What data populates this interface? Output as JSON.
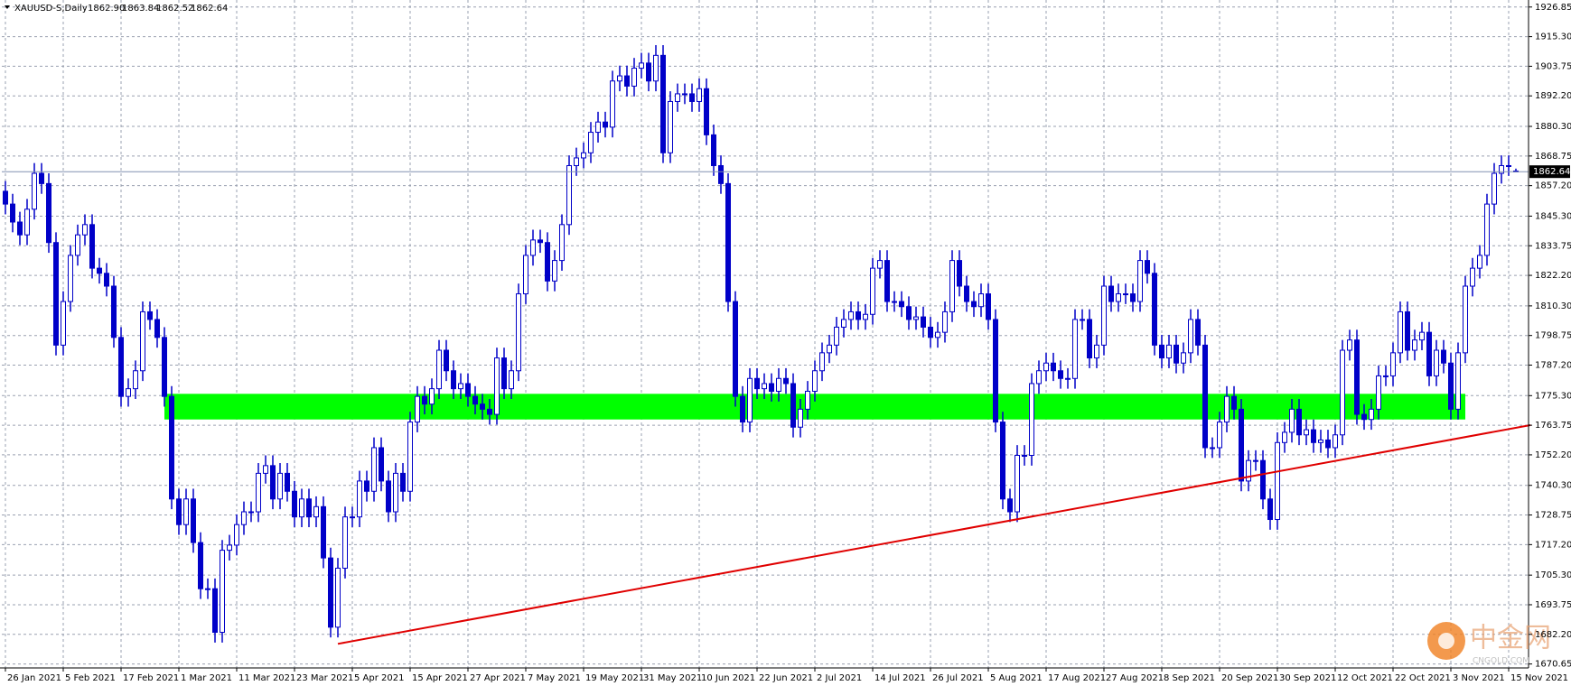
{
  "chart_data": {
    "type": "candlestick",
    "title": "XAUUSD-S,Daily",
    "header_ohlc": [
      "1862.90",
      "1863.84",
      "1862.52",
      "1862.64"
    ],
    "categories": [
      "26 Jan 2021",
      null,
      null,
      null,
      null,
      null,
      null,
      null,
      "5 Feb 2021",
      null,
      null,
      null,
      null,
      null,
      null,
      null,
      "17 Feb 2021",
      null,
      null,
      null,
      null,
      null,
      null,
      null,
      "1 Mar 2021",
      null,
      null,
      null,
      null,
      null,
      null,
      null,
      "11 Mar 2021",
      null,
      null,
      null,
      null,
      null,
      null,
      null,
      "23 Mar 2021",
      null,
      null,
      null,
      null,
      null,
      null,
      null,
      "5 Apr 2021",
      null,
      null,
      null,
      null,
      null,
      null,
      null,
      "15 Apr 2021",
      null,
      null,
      null,
      null,
      null,
      null,
      null,
      "27 Apr 2021",
      null,
      null,
      null,
      null,
      null,
      null,
      null,
      "7 May 2021",
      null,
      null,
      null,
      null,
      null,
      null,
      null,
      "19 May 2021",
      null,
      null,
      null,
      null,
      null,
      null,
      null,
      "31 May 2021",
      null,
      null,
      null,
      null,
      null,
      null,
      null,
      "10 Jun 2021",
      null,
      null,
      null,
      null,
      null,
      null,
      null,
      "22 Jun 2021",
      null,
      null,
      null,
      null,
      null,
      null,
      null,
      "2 Jul 2021",
      null,
      null,
      null,
      null,
      null,
      null,
      null,
      "14 Jul 2021",
      null,
      null,
      null,
      null,
      null,
      null,
      null,
      "26 Jul 2021",
      null,
      null,
      null,
      null,
      null,
      null,
      null,
      "5 Aug 2021",
      null,
      null,
      null,
      null,
      null,
      null,
      null,
      "17 Aug 2021",
      null,
      null,
      null,
      null,
      null,
      null,
      null,
      "27 Aug 2021",
      null,
      null,
      null,
      null,
      null,
      null,
      null,
      "8 Sep 2021",
      null,
      null,
      null,
      null,
      null,
      null,
      null,
      "20 Sep 2021",
      null,
      null,
      null,
      null,
      null,
      null,
      null,
      "30 Sep 2021",
      null,
      null,
      null,
      null,
      null,
      null,
      null,
      "12 Oct 2021",
      null,
      null,
      null,
      null,
      null,
      null,
      null,
      "22 Oct 2021",
      null,
      null,
      null,
      null,
      null,
      null,
      null,
      "3 Nov 2021",
      null,
      null,
      null,
      null,
      null,
      null,
      null,
      "15 Nov 2021",
      null
    ],
    "open": [
      1855,
      1850,
      1843,
      1838,
      1848,
      1862,
      1858,
      1835,
      1795,
      1812,
      1830,
      1838,
      1842,
      1825,
      1823,
      1818,
      1798,
      1775,
      1778,
      1785,
      1808,
      1805,
      1798,
      1775,
      1735,
      1725,
      1735,
      1718,
      1700,
      1700,
      1683,
      1715,
      1717,
      1725,
      1730,
      1730,
      1745,
      1748,
      1735,
      1745,
      1738,
      1728,
      1735,
      1728,
      1732,
      1712,
      1685,
      1708,
      1728,
      1728,
      1742,
      1738,
      1755,
      1742,
      1730,
      1745,
      1738,
      1765,
      1775,
      1772,
      1778,
      1793,
      1785,
      1778,
      1780,
      1775,
      1772,
      1770,
      1768,
      1790,
      1778,
      1785,
      1815,
      1830,
      1836,
      1835,
      1820,
      1828,
      1842,
      1865,
      1868,
      1870,
      1878,
      1882,
      1880,
      1898,
      1900,
      1896,
      1903,
      1905,
      1898,
      1908,
      1870,
      1890,
      1893,
      1893,
      1890,
      1895,
      1877,
      1865,
      1858,
      1812,
      1775,
      1765,
      1782,
      1778,
      1780,
      1777,
      1782,
      1780,
      1763,
      1770,
      1777,
      1785,
      1792,
      1795,
      1802,
      1805,
      1808,
      1805,
      1807,
      1825,
      1828,
      1812,
      1812,
      1810,
      1805,
      1806,
      1802,
      1798,
      1800,
      1808,
      1828,
      1818,
      1812,
      1810,
      1815,
      1805,
      1765,
      1735,
      1730,
      1752,
      1752,
      1780,
      1785,
      1788,
      1785,
      1782,
      1782,
      1805,
      1805,
      1790,
      1795,
      1818,
      1812,
      1815,
      1815,
      1812,
      1828,
      1823,
      1795,
      1790,
      1795,
      1788,
      1792,
      1805,
      1795,
      1755,
      1755,
      1765,
      1775,
      1770,
      1742,
      1750,
      1750,
      1735,
      1727,
      1757,
      1761,
      1770,
      1760,
      1762,
      1757,
      1758,
      1755,
      1760,
      1793,
      1797,
      1768,
      1766,
      1770,
      1783,
      1783,
      1792,
      1808,
      1793,
      1797,
      1800,
      1783,
      1793,
      1788,
      1770,
      1792,
      1818,
      1825,
      1830,
      1850,
      1862,
      1865,
      1862.9
    ],
    "high": [
      1859,
      1854,
      1847,
      1852,
      1866,
      1866,
      1862,
      1839,
      1816,
      1834,
      1842,
      1846,
      1846,
      1829,
      1827,
      1822,
      1802,
      1782,
      1789,
      1812,
      1812,
      1809,
      1802,
      1779,
      1739,
      1739,
      1739,
      1722,
      1704,
      1704,
      1719,
      1721,
      1729,
      1734,
      1734,
      1749,
      1752,
      1752,
      1749,
      1749,
      1742,
      1739,
      1739,
      1736,
      1736,
      1716,
      1712,
      1732,
      1732,
      1746,
      1746,
      1759,
      1759,
      1746,
      1749,
      1749,
      1769,
      1779,
      1779,
      1782,
      1797,
      1797,
      1789,
      1784,
      1784,
      1779,
      1776,
      1774,
      1794,
      1794,
      1789,
      1819,
      1834,
      1840,
      1840,
      1839,
      1832,
      1846,
      1869,
      1872,
      1874,
      1882,
      1886,
      1886,
      1902,
      1904,
      1904,
      1907,
      1909,
      1909,
      1912,
      1912,
      1894,
      1897,
      1897,
      1897,
      1899,
      1899,
      1881,
      1869,
      1862,
      1816,
      1779,
      1786,
      1786,
      1784,
      1784,
      1786,
      1786,
      1784,
      1774,
      1781,
      1789,
      1796,
      1799,
      1806,
      1809,
      1812,
      1812,
      1811,
      1829,
      1832,
      1832,
      1816,
      1816,
      1814,
      1810,
      1810,
      1806,
      1804,
      1812,
      1832,
      1832,
      1822,
      1816,
      1819,
      1819,
      1809,
      1769,
      1739,
      1756,
      1756,
      1784,
      1789,
      1792,
      1792,
      1789,
      1786,
      1809,
      1809,
      1809,
      1799,
      1822,
      1822,
      1819,
      1819,
      1819,
      1832,
      1832,
      1827,
      1799,
      1799,
      1799,
      1796,
      1809,
      1809,
      1799,
      1759,
      1769,
      1779,
      1779,
      1774,
      1754,
      1754,
      1754,
      1739,
      1761,
      1765,
      1774,
      1774,
      1766,
      1766,
      1762,
      1762,
      1764,
      1797,
      1801,
      1801,
      1772,
      1774,
      1787,
      1787,
      1796,
      1812,
      1812,
      1801,
      1804,
      1804,
      1797,
      1797,
      1792,
      1796,
      1822,
      1829,
      1834,
      1854,
      1866,
      1869,
      1869,
      1863.84
    ],
    "low": [
      1846,
      1839,
      1834,
      1834,
      1844,
      1854,
      1831,
      1791,
      1791,
      1808,
      1826,
      1834,
      1821,
      1819,
      1814,
      1794,
      1771,
      1771,
      1774,
      1781,
      1801,
      1794,
      1771,
      1731,
      1721,
      1721,
      1714,
      1696,
      1696,
      1679,
      1679,
      1711,
      1713,
      1721,
      1726,
      1726,
      1741,
      1731,
      1731,
      1734,
      1724,
      1724,
      1724,
      1724,
      1708,
      1681,
      1681,
      1704,
      1724,
      1724,
      1734,
      1734,
      1738,
      1726,
      1726,
      1734,
      1734,
      1761,
      1768,
      1768,
      1774,
      1781,
      1774,
      1774,
      1771,
      1768,
      1766,
      1764,
      1764,
      1774,
      1774,
      1781,
      1811,
      1826,
      1831,
      1816,
      1816,
      1824,
      1838,
      1861,
      1864,
      1866,
      1874,
      1876,
      1876,
      1894,
      1892,
      1892,
      1899,
      1894,
      1894,
      1866,
      1866,
      1886,
      1889,
      1886,
      1886,
      1873,
      1861,
      1854,
      1808,
      1771,
      1761,
      1761,
      1774,
      1774,
      1773,
      1773,
      1776,
      1759,
      1759,
      1766,
      1773,
      1781,
      1788,
      1791,
      1798,
      1801,
      1801,
      1801,
      1803,
      1821,
      1808,
      1808,
      1806,
      1801,
      1801,
      1798,
      1794,
      1794,
      1796,
      1804,
      1814,
      1808,
      1806,
      1806,
      1801,
      1761,
      1731,
      1726,
      1726,
      1748,
      1748,
      1776,
      1781,
      1781,
      1778,
      1778,
      1778,
      1801,
      1786,
      1786,
      1791,
      1808,
      1808,
      1811,
      1808,
      1808,
      1819,
      1791,
      1786,
      1786,
      1784,
      1784,
      1788,
      1791,
      1751,
      1751,
      1751,
      1761,
      1766,
      1738,
      1738,
      1746,
      1731,
      1723,
      1723,
      1753,
      1757,
      1756,
      1756,
      1753,
      1753,
      1751,
      1751,
      1756,
      1789,
      1764,
      1762,
      1762,
      1766,
      1779,
      1779,
      1788,
      1789,
      1789,
      1793,
      1779,
      1779,
      1784,
      1766,
      1766,
      1788,
      1814,
      1821,
      1826,
      1846,
      1858,
      1861,
      1862.52
    ],
    "close": [
      1850,
      1843,
      1838,
      1848,
      1862,
      1858,
      1835,
      1795,
      1812,
      1830,
      1838,
      1842,
      1825,
      1823,
      1818,
      1798,
      1775,
      1778,
      1785,
      1808,
      1805,
      1798,
      1775,
      1735,
      1725,
      1735,
      1718,
      1700,
      1700,
      1683,
      1715,
      1717,
      1725,
      1730,
      1730,
      1745,
      1748,
      1735,
      1745,
      1738,
      1728,
      1735,
      1728,
      1732,
      1712,
      1685,
      1708,
      1728,
      1728,
      1742,
      1738,
      1755,
      1742,
      1730,
      1745,
      1738,
      1765,
      1775,
      1772,
      1778,
      1793,
      1785,
      1778,
      1780,
      1775,
      1772,
      1770,
      1768,
      1790,
      1778,
      1785,
      1815,
      1830,
      1836,
      1835,
      1820,
      1828,
      1842,
      1865,
      1868,
      1870,
      1878,
      1882,
      1880,
      1898,
      1900,
      1896,
      1903,
      1905,
      1898,
      1908,
      1870,
      1890,
      1893,
      1893,
      1890,
      1895,
      1877,
      1865,
      1858,
      1812,
      1775,
      1765,
      1782,
      1778,
      1780,
      1777,
      1782,
      1780,
      1763,
      1770,
      1777,
      1785,
      1792,
      1795,
      1802,
      1805,
      1808,
      1805,
      1807,
      1825,
      1828,
      1812,
      1812,
      1810,
      1805,
      1806,
      1802,
      1798,
      1800,
      1808,
      1828,
      1818,
      1812,
      1810,
      1815,
      1805,
      1765,
      1735,
      1730,
      1752,
      1752,
      1780,
      1785,
      1788,
      1785,
      1782,
      1782,
      1805,
      1805,
      1790,
      1795,
      1818,
      1812,
      1815,
      1815,
      1812,
      1828,
      1823,
      1795,
      1790,
      1795,
      1788,
      1792,
      1805,
      1795,
      1755,
      1755,
      1765,
      1775,
      1770,
      1742,
      1750,
      1750,
      1735,
      1727,
      1757,
      1761,
      1770,
      1760,
      1762,
      1757,
      1758,
      1755,
      1760,
      1793,
      1797,
      1768,
      1766,
      1770,
      1783,
      1783,
      1792,
      1808,
      1793,
      1797,
      1800,
      1783,
      1793,
      1788,
      1770,
      1792,
      1818,
      1825,
      1830,
      1850,
      1862,
      1865,
      1865,
      1862.64
    ],
    "up_color": "#ffffff",
    "down_color": "#0000c8",
    "wick_color": "#0000c8",
    "ylim": [
      1669.1,
      1929.59
    ],
    "yticks": [
      1926.85,
      {
        "value": 1915.3,
        "label": "1915.30"
      },
      1903.75,
      {
        "value": 1892.2,
        "label": "1892.20"
      },
      {
        "value": 1880.3,
        "label": "1880.30"
      },
      1868.75,
      {
        "value": 1857.2,
        "label": "1857.20"
      },
      {
        "value": 1845.3,
        "label": "1845.30"
      },
      1833.75,
      {
        "value": 1822.2,
        "label": "1822.20"
      },
      {
        "value": 1810.3,
        "label": "1810.30"
      },
      1798.75,
      {
        "value": 1787.2,
        "label": "1787.20"
      },
      {
        "value": 1775.3,
        "label": "1775.30"
      },
      1763.75,
      {
        "value": 1752.2,
        "label": "1752.20"
      },
      {
        "value": 1740.3,
        "label": "1740.30"
      },
      1728.75,
      {
        "value": 1717.2,
        "label": "1717.20"
      },
      {
        "value": 1705.3,
        "label": "1705.30"
      },
      1693.75,
      {
        "value": 1682.2,
        "label": "1682.20"
      },
      1670.65
    ],
    "grid": true,
    "last_price": {
      "value": 1862.64,
      "label": "1862.64"
    },
    "zone": {
      "x": [
        22,
        202
      ],
      "y": [
        1766,
        1776
      ],
      "color": "#00ff00"
    },
    "trendline": {
      "x": [
        46,
        211
      ],
      "y": [
        1678.5,
        1763.8
      ],
      "color": "#e00000"
    },
    "watermark": [
      "中金网",
      "CNGOLD.COM"
    ]
  }
}
